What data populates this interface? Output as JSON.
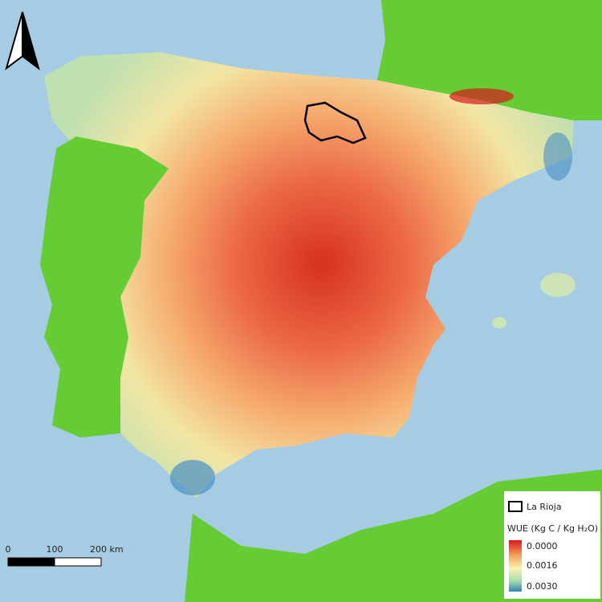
{
  "legend": {
    "boundary_label": "La Rioja",
    "title": "WUE (Kg C / Kg H₂O)",
    "ramp_labels": [
      "0.0000",
      "0.0016",
      "0.0030"
    ]
  },
  "scale_bar": {
    "labels": [
      "0",
      "100",
      "200 km"
    ]
  }
}
